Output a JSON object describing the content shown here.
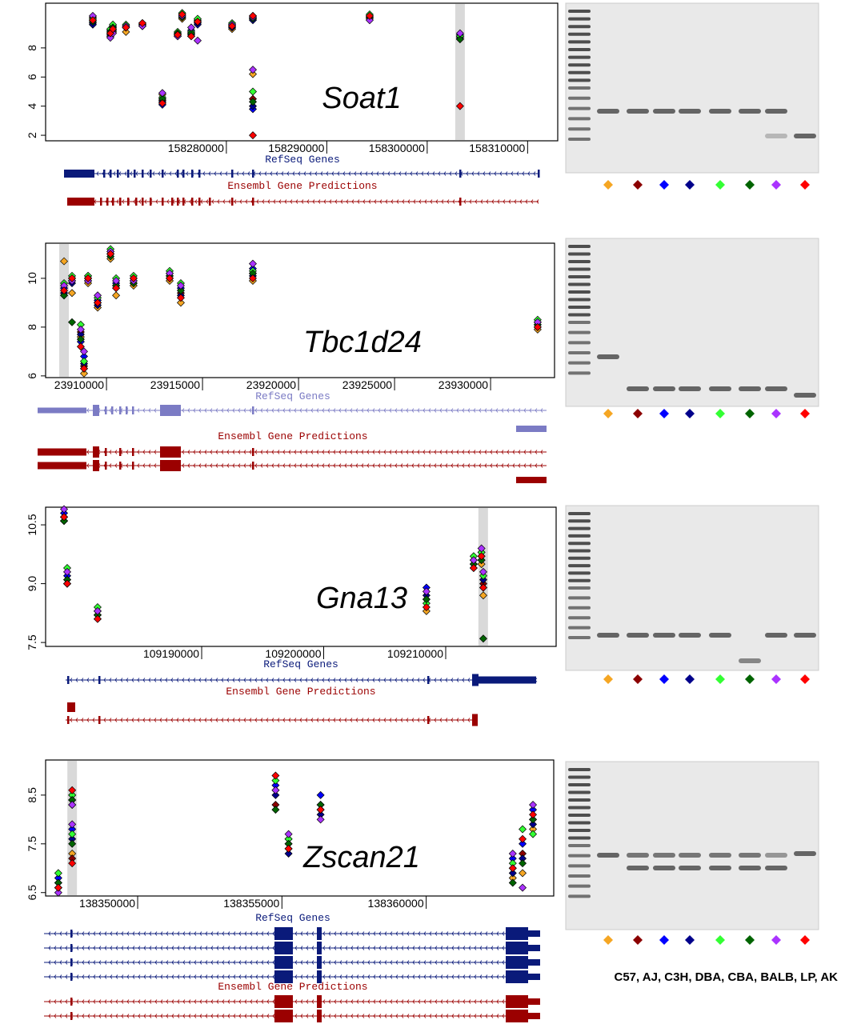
{
  "strain_legend": "C57, AJ, C3H, DBA, CBA, BALB, LP, AK",
  "chart_data": [
    {
      "type": "scatter",
      "title": "Soat1",
      "tracks": [
        "RefSeq Genes",
        "Ensembl Gene Predictions"
      ],
      "xlim": [
        158262000,
        158313000
      ],
      "xticks": [
        158280000,
        158290000,
        158300000,
        158310000
      ],
      "ylim": [
        1.62,
        11.07
      ],
      "yticks": [
        2,
        4,
        6,
        8
      ],
      "highlight_x": 158303270,
      "x": [
        158266700,
        158268450,
        158268700,
        158270000,
        158271640,
        158273630,
        158275150,
        158275600,
        158276500,
        158277140,
        158280570,
        158282640,
        158282640,
        158294270,
        158303270
      ],
      "series": [
        {
          "color": "#f5a623",
          "values": [
            9.9,
            8.8,
            9.1,
            9.1,
            9.6,
            4.8,
            8.8,
            10.0,
            8.8,
            9.8,
            9.3,
            10.0,
            6.2,
            10.0,
            8.6
          ]
        },
        {
          "color": "#8b0000",
          "values": [
            10.1,
            9.0,
            9.3,
            9.4,
            9.7,
            4.4,
            8.9,
            10.2,
            9.0,
            9.9,
            9.6,
            10.1,
            4.5,
            10.1,
            8.8
          ]
        },
        {
          "color": "#0000ff",
          "values": [
            9.7,
            9.2,
            9.5,
            9.5,
            9.5,
            4.1,
            9.0,
            10.1,
            9.2,
            9.6,
            9.5,
            9.9,
            3.8,
            10.2,
            8.9
          ]
        },
        {
          "color": "#00008b",
          "values": [
            9.6,
            8.9,
            9.2,
            9.4,
            9.6,
            4.3,
            8.9,
            10.3,
            8.9,
            9.7,
            9.4,
            10.0,
            4.0,
            10.1,
            8.7
          ]
        },
        {
          "color": "#33ff33",
          "values": [
            10.0,
            9.3,
            9.6,
            9.6,
            9.7,
            4.6,
            9.1,
            10.4,
            9.1,
            10.0,
            9.7,
            10.2,
            5.0,
            10.3,
            8.8
          ]
        },
        {
          "color": "#006400",
          "values": [
            9.8,
            9.1,
            9.4,
            9.5,
            9.6,
            4.5,
            9.0,
            10.1,
            9.0,
            9.8,
            9.5,
            10.0,
            4.3,
            10.1,
            8.6
          ]
        },
        {
          "color": "#aa33ff",
          "values": [
            10.2,
            8.7,
            9.0,
            9.5,
            9.5,
            4.9,
            8.8,
            10.2,
            9.4,
            8.5,
            9.6,
            10.1,
            6.5,
            9.9,
            9.0
          ]
        },
        {
          "color": "#ff0000",
          "values": [
            9.9,
            9.0,
            9.3,
            9.4,
            9.7,
            4.2,
            8.9,
            10.3,
            8.8,
            9.8,
            9.5,
            10.2,
            2.0,
            10.2,
            4.0
          ]
        }
      ]
    },
    {
      "type": "scatter",
      "title": "Tbc1d24",
      "tracks": [
        "RefSeq Genes",
        "Ensembl Gene Predictions"
      ],
      "xlim": [
        23906830,
        23933330
      ],
      "xticks": [
        23910000,
        23915000,
        23920000,
        23925000,
        23930000
      ],
      "ylim": [
        5.93,
        11.44
      ],
      "yticks": [
        6,
        8,
        10
      ],
      "highlight_x": 23907790,
      "x": [
        23907790,
        23908205,
        23908660,
        23908830,
        23909040,
        23909540,
        23910210,
        23910500,
        23911410,
        23913290,
        23913870,
        23917620,
        23932450
      ],
      "series": [
        {
          "color": "#f5a623",
          "values": [
            10.7,
            9.4,
            7.6,
            6.1,
            9.8,
            8.8,
            10.8,
            9.3,
            9.7,
            9.9,
            9.0,
            9.9,
            7.9
          ]
        },
        {
          "color": "#8b0000",
          "values": [
            9.3,
            9.9,
            7.8,
            6.4,
            10.0,
            9.0,
            11.0,
            9.7,
            9.9,
            10.1,
            9.4,
            10.2,
            8.1
          ]
        },
        {
          "color": "#0000ff",
          "values": [
            9.6,
            10.0,
            7.4,
            6.8,
            10.1,
            9.1,
            11.1,
            9.8,
            10.0,
            10.2,
            9.6,
            10.4,
            8.2
          ]
        },
        {
          "color": "#00008b",
          "values": [
            9.4,
            9.8,
            7.7,
            6.5,
            9.9,
            8.9,
            11.0,
            9.6,
            9.8,
            10.0,
            9.3,
            10.1,
            8.0
          ]
        },
        {
          "color": "#33ff33",
          "values": [
            9.8,
            10.1,
            8.1,
            6.6,
            10.1,
            9.2,
            11.2,
            10.0,
            10.1,
            10.3,
            9.8,
            10.3,
            8.3
          ]
        },
        {
          "color": "#006400",
          "values": [
            9.3,
            8.2,
            7.5,
            6.3,
            10.0,
            9.0,
            10.9,
            9.7,
            9.8,
            10.1,
            9.5,
            10.2,
            8.1
          ]
        },
        {
          "color": "#aa33ff",
          "values": [
            9.7,
            9.9,
            7.9,
            7.0,
            9.9,
            9.3,
            11.1,
            9.9,
            9.9,
            10.2,
            9.7,
            10.6,
            8.2
          ]
        },
        {
          "color": "#ff0000",
          "values": [
            9.5,
            10.0,
            7.2,
            6.3,
            10.0,
            9.0,
            11.0,
            9.6,
            10.0,
            10.0,
            9.2,
            10.0,
            8.0
          ]
        }
      ]
    },
    {
      "type": "scatter",
      "title": "Gna13",
      "tracks": [
        "RefSeq Genes",
        "Ensembl Gene Predictions"
      ],
      "xlim": [
        109177210,
        109219050
      ],
      "xticks": [
        109190000,
        109200000,
        109210000
      ],
      "ylim": [
        7.4,
        10.95
      ],
      "yticks": [
        7.5,
        {
          "value": 9,
          "label": "9.0"
        },
        10.5
      ],
      "highlight_x": 109213070,
      "x": [
        109178720,
        109178980,
        109181470,
        109208420,
        109212290,
        109212930,
        109213080
      ],
      "series": [
        {
          "color": "#f5a623",
          "values": [
            10.6,
            9.0,
            8.1,
            8.3,
            9.4,
            9.5,
            8.7
          ]
        },
        {
          "color": "#8b0000",
          "values": [
            10.7,
            9.1,
            8.2,
            8.6,
            9.5,
            9.7,
            9.0
          ]
        },
        {
          "color": "#0000ff",
          "values": [
            10.8,
            9.2,
            8.3,
            8.9,
            9.6,
            9.8,
            8.9
          ]
        },
        {
          "color": "#00008b",
          "values": [
            10.6,
            9.0,
            8.2,
            8.7,
            9.5,
            9.6,
            9.1
          ]
        },
        {
          "color": "#33ff33",
          "values": [
            10.7,
            9.4,
            8.4,
            8.5,
            9.7,
            9.8,
            9.2
          ]
        },
        {
          "color": "#006400",
          "values": [
            10.6,
            9.1,
            8.2,
            8.6,
            9.5,
            9.6,
            7.6
          ]
        },
        {
          "color": "#aa33ff",
          "values": [
            10.9,
            9.3,
            8.3,
            8.8,
            9.6,
            9.9,
            9.3
          ]
        },
        {
          "color": "#ff0000",
          "values": [
            10.7,
            9.0,
            8.1,
            8.4,
            9.4,
            9.7,
            8.9
          ]
        }
      ]
    },
    {
      "type": "scatter",
      "title": "Zscan21",
      "tracks": [
        "RefSeq Genes",
        "Ensembl Gene Predictions"
      ],
      "xlim": [
        138346810,
        138364420
      ],
      "xticks": [
        138350000,
        138355000,
        138360000
      ],
      "ylim": [
        6.43,
        9.22
      ],
      "yticks": [
        6.5,
        7.5,
        8.5
      ],
      "highlight_x": 138347730,
      "x": [
        138347250,
        138347730,
        138347730,
        138354780,
        138355230,
        138356340,
        138363000,
        138363340,
        138363700
      ],
      "series": [
        {
          "color": "#f5a623",
          "values": [
            6.6,
            8.4,
            7.3,
            8.6,
            7.4,
            8.2,
            6.8,
            6.9,
            7.8
          ]
        },
        {
          "color": "#8b0000",
          "values": [
            6.7,
            8.5,
            7.2,
            8.3,
            7.5,
            8.3,
            7.0,
            7.3,
            8.0
          ]
        },
        {
          "color": "#0000ff",
          "values": [
            6.8,
            8.3,
            7.8,
            8.7,
            7.6,
            8.5,
            7.2,
            7.5,
            8.2
          ]
        },
        {
          "color": "#00008b",
          "values": [
            6.6,
            8.4,
            7.6,
            8.5,
            7.3,
            8.1,
            6.9,
            7.2,
            7.9
          ]
        },
        {
          "color": "#33ff33",
          "values": [
            6.9,
            8.5,
            7.7,
            8.8,
            7.6,
            8.2,
            7.1,
            7.8,
            7.7
          ]
        },
        {
          "color": "#006400",
          "values": [
            6.7,
            8.4,
            7.5,
            8.2,
            7.5,
            8.3,
            6.7,
            7.1,
            8.0
          ]
        },
        {
          "color": "#aa33ff",
          "values": [
            6.5,
            8.3,
            7.9,
            8.6,
            7.7,
            8.0,
            7.3,
            6.6,
            8.3
          ]
        },
        {
          "color": "#ff0000",
          "values": [
            6.6,
            8.6,
            7.1,
            8.9,
            7.4,
            8.2,
            7.0,
            7.6,
            8.1
          ]
        }
      ]
    }
  ]
}
